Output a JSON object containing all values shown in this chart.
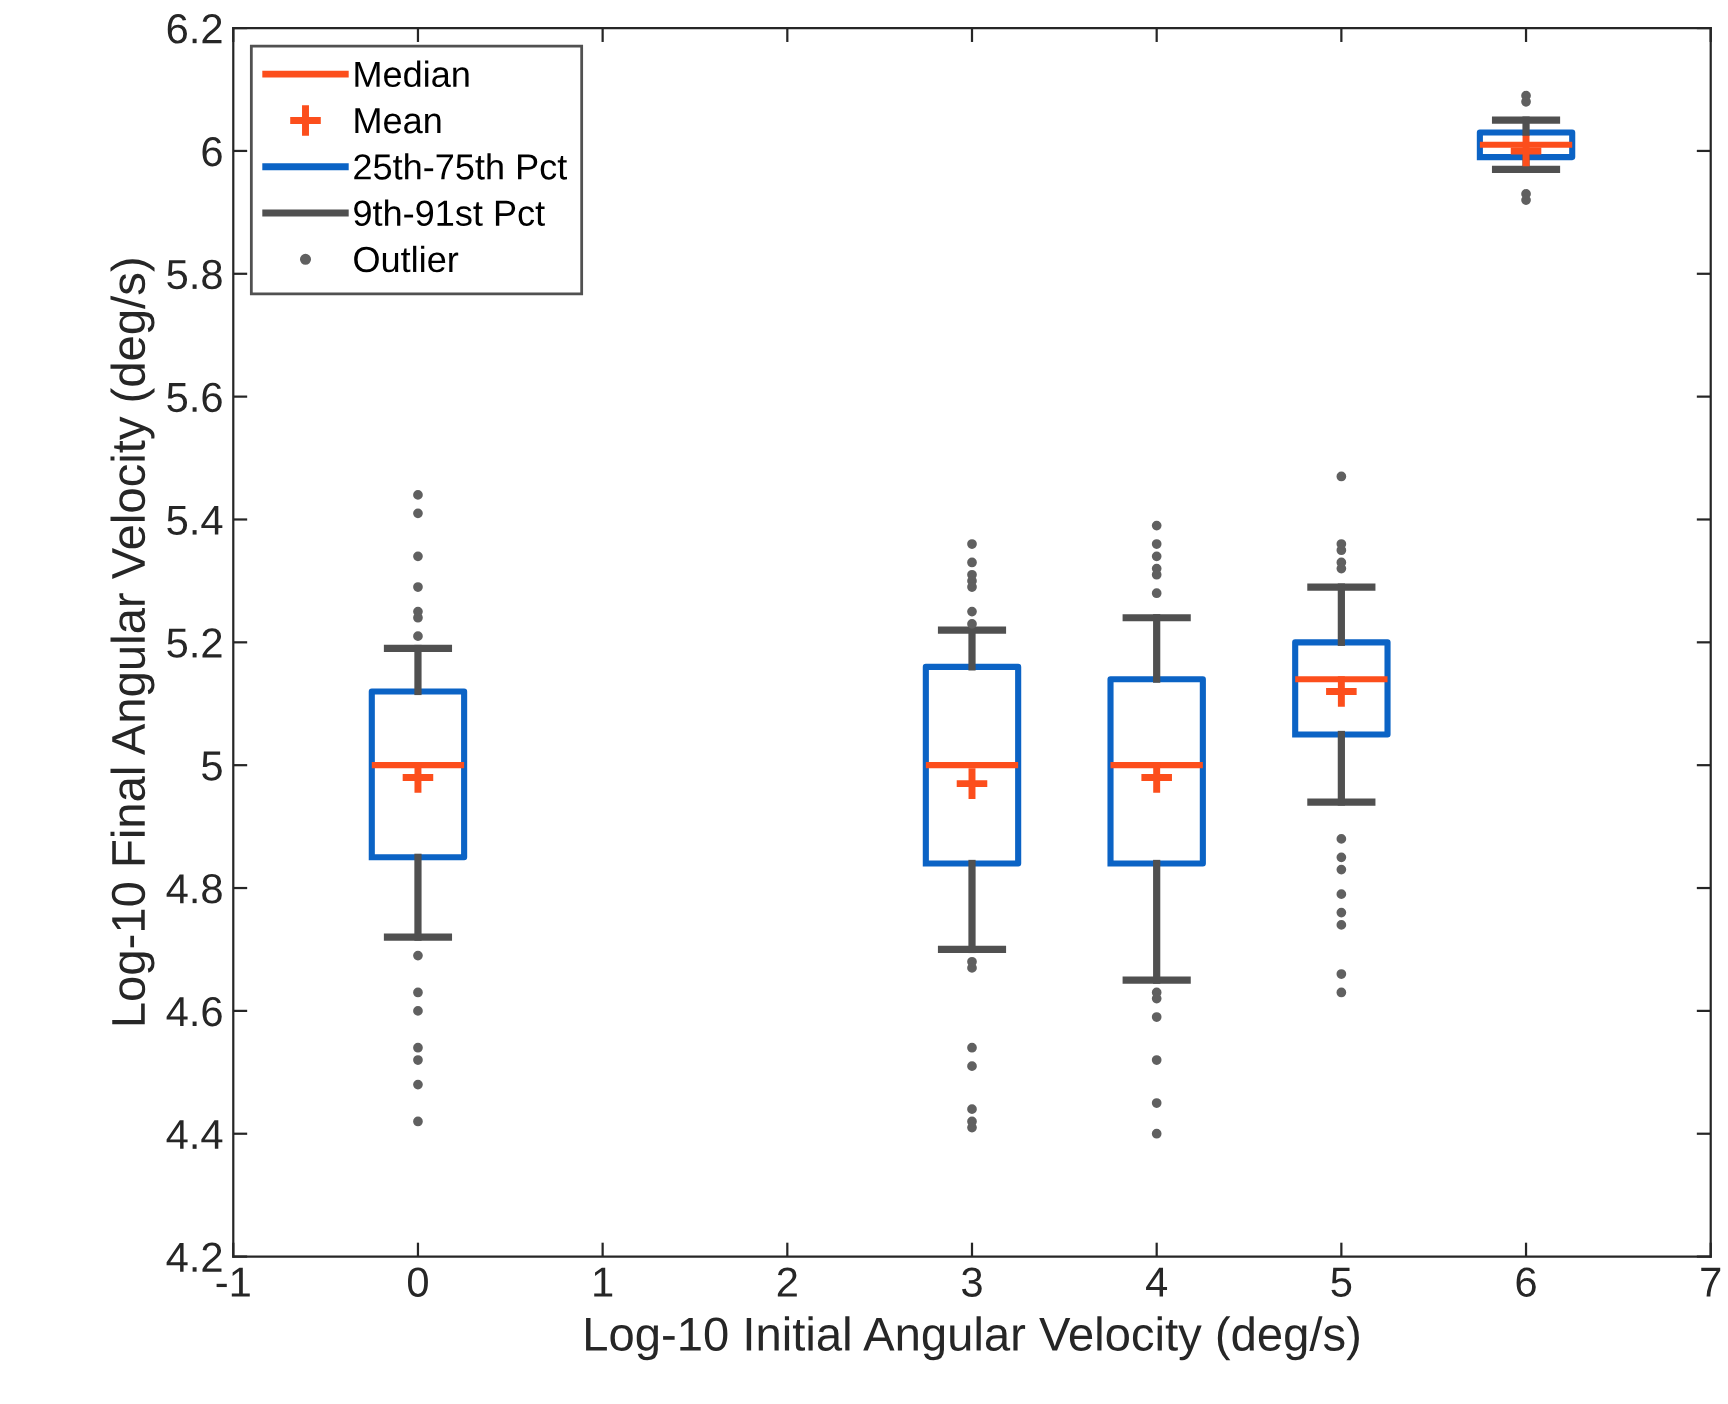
{
  "chart_data": {
    "type": "box",
    "xlabel": "Log-10 Initial Angular Velocity (deg/s)",
    "ylabel": "Log-10 Final Angular Velocity (deg/s)",
    "x": [
      0,
      3,
      4,
      5,
      6
    ],
    "xlim": [
      -1,
      7
    ],
    "xticks": [
      -1,
      0,
      1,
      2,
      3,
      4,
      5,
      6,
      7
    ],
    "ylim": [
      4.2,
      6.2
    ],
    "yticks": [
      4.2,
      4.4,
      4.6,
      4.8,
      5,
      5.2,
      5.4,
      5.6,
      5.8,
      6,
      6.2
    ],
    "grid": false,
    "legend": "top left",
    "annotations": [
      "Median",
      "25th-75th Pct",
      "9th-91st Pct"
    ],
    "series": [
      {
        "color": "#0b63c5",
        "type": "box",
        "boxes": [
          {
            "low": 4.72,
            "q1": 4.85,
            "median": 5.0,
            "q3": 5.12,
            "high": 5.19
          },
          {
            "low": 4.7,
            "q1": 4.84,
            "median": 5.0,
            "q3": 5.16,
            "high": 5.22
          },
          {
            "low": 4.65,
            "q1": 4.84,
            "median": 5.0,
            "q3": 5.14,
            "high": 5.24
          },
          {
            "low": 4.94,
            "q1": 5.05,
            "median": 5.14,
            "q3": 5.2,
            "high": 5.29
          },
          {
            "low": 5.97,
            "q1": 5.99,
            "median": 6.01,
            "q3": 6.03,
            "high": 6.05
          }
        ]
      },
      {
        "name": "Mean",
        "color": "#fc4e1c",
        "type": "scatter",
        "marker": "cross",
        "values": [
          4.98,
          4.97,
          4.98,
          5.12,
          6.0
        ]
      },
      {
        "name": "Outlier",
        "color": "#606060",
        "type": "scatter",
        "marker": "circle",
        "x": [
          0,
          0,
          0,
          0,
          0,
          0,
          0,
          0,
          0,
          0,
          0,
          0,
          0,
          0,
          3,
          3,
          3,
          3,
          3,
          3,
          3,
          3,
          3,
          3,
          3,
          3,
          3,
          3,
          4,
          4,
          4,
          4,
          4,
          4,
          4,
          4,
          4,
          4,
          4,
          4,
          5,
          5,
          5,
          5,
          5,
          5,
          5,
          5,
          5,
          5,
          5,
          5,
          5,
          6,
          6,
          6,
          6
        ],
        "values": [
          5.44,
          5.41,
          5.34,
          5.29,
          5.25,
          5.24,
          5.21,
          4.69,
          4.63,
          4.6,
          4.54,
          4.52,
          4.48,
          4.42,
          5.36,
          5.33,
          5.31,
          5.3,
          5.29,
          5.25,
          5.23,
          4.68,
          4.67,
          4.54,
          4.51,
          4.44,
          4.42,
          4.41,
          5.39,
          5.36,
          5.34,
          5.32,
          5.31,
          5.28,
          4.63,
          4.62,
          4.59,
          4.52,
          4.45,
          4.4,
          5.47,
          5.36,
          5.35,
          5.33,
          5.32,
          4.88,
          4.85,
          4.83,
          4.79,
          4.76,
          4.74,
          4.66,
          4.63,
          6.09,
          6.08,
          5.93,
          5.92
        ]
      }
    ]
  }
}
